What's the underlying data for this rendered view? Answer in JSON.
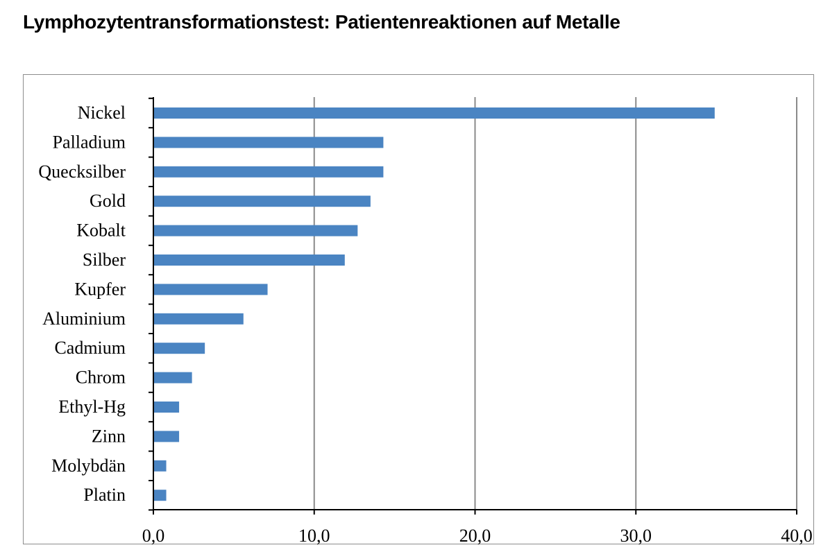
{
  "title": "Lymphozytentransformationstest: Patientenreaktionen auf Metalle",
  "chart_data": {
    "type": "bar",
    "orientation": "horizontal",
    "title": "Lymphozytentransformationstest: Patientenreaktionen auf Metalle",
    "categories": [
      "Nickel",
      "Palladium",
      "Quecksilber",
      "Gold",
      "Kobalt",
      "Silber",
      "Kupfer",
      "Aluminium",
      "Cadmium",
      "Chrom",
      "Ethyl-Hg",
      "Zinn",
      "Molybdän",
      "Platin"
    ],
    "values": [
      34.9,
      14.3,
      14.3,
      13.5,
      12.7,
      11.9,
      7.1,
      5.6,
      3.2,
      2.4,
      1.6,
      1.6,
      0.8,
      0.8
    ],
    "xlim": [
      0,
      40
    ],
    "xticks": [
      0,
      10,
      20,
      30,
      40
    ],
    "xtick_labels": [
      "0,0",
      "10,0",
      "20,0",
      "30,0",
      "40,0"
    ],
    "xlabel": "",
    "ylabel": "",
    "grid": "vertical",
    "legend": "none",
    "colors": {
      "bar": "#4a84c2",
      "grid": "#8a8a8a",
      "axis": "#000000",
      "frame": "#8c8c8c"
    }
  }
}
